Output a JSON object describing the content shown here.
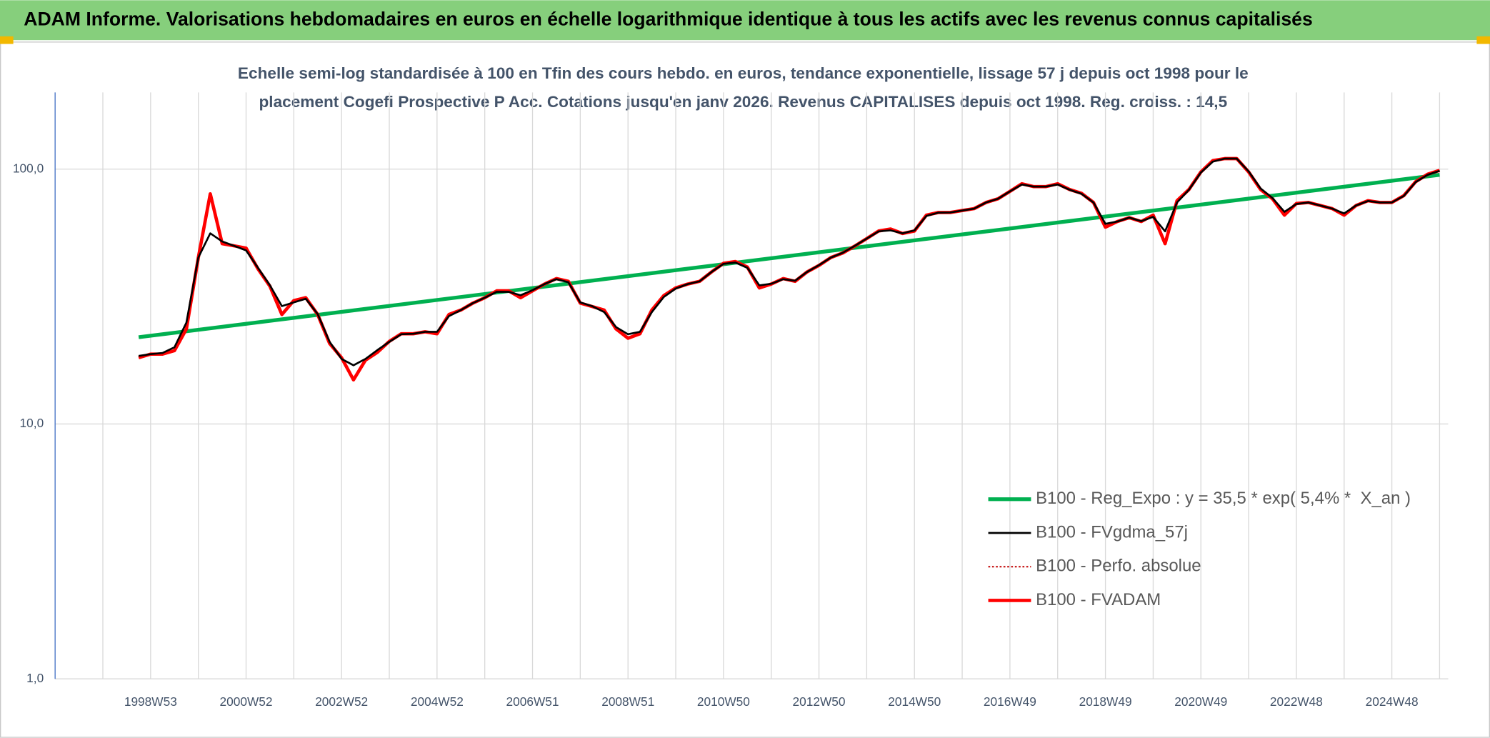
{
  "chart_data": {
    "type": "line",
    "title": "ADAM Informe. Valorisations hebdomadaires en euros en échelle logarithmique identique à tous les actifs avec les revenus connus capitalisés",
    "subtitle": [
      "Echelle semi-log standardisée à 100 en Tfin des cours hebdo. en euros, tendance exponentielle, lissage 57 j depuis oct 1998 pour le",
      "placement Cogefi Prospective P Acc. Cotations jusqu'en janv 2026. Revenus CAPITALISES depuis oct 1998. Reg. croiss. : 14,5"
    ],
    "log_scale": true,
    "grid": true,
    "legend": "lower right",
    "xlim": [
      1997,
      2026.18
    ],
    "ylim": [
      1,
      200
    ],
    "yticks": [
      {
        "value": 1,
        "label": "1,0"
      },
      {
        "value": 10,
        "label": "10,0"
      },
      {
        "value": 100,
        "label": "100,0"
      }
    ],
    "xticks": [
      {
        "value": 1998,
        "label": null
      },
      {
        "value": 1999,
        "label": "1998W53"
      },
      {
        "value": 2000,
        "label": null
      },
      {
        "value": 2001,
        "label": "2000W52"
      },
      {
        "value": 2002,
        "label": null
      },
      {
        "value": 2003,
        "label": "2002W52"
      },
      {
        "value": 2004,
        "label": null
      },
      {
        "value": 2005,
        "label": "2004W52"
      },
      {
        "value": 2006,
        "label": null
      },
      {
        "value": 2007,
        "label": "2006W51"
      },
      {
        "value": 2008,
        "label": null
      },
      {
        "value": 2009,
        "label": "2008W51"
      },
      {
        "value": 2010,
        "label": null
      },
      {
        "value": 2011,
        "label": "2010W50"
      },
      {
        "value": 2012,
        "label": null
      },
      {
        "value": 2013,
        "label": "2012W50"
      },
      {
        "value": 2014,
        "label": null
      },
      {
        "value": 2015,
        "label": "2014W50"
      },
      {
        "value": 2016,
        "label": null
      },
      {
        "value": 2017,
        "label": "2016W49"
      },
      {
        "value": 2018,
        "label": null
      },
      {
        "value": 2019,
        "label": "2018W49"
      },
      {
        "value": 2020,
        "label": null
      },
      {
        "value": 2021,
        "label": "2020W49"
      },
      {
        "value": 2022,
        "label": null
      },
      {
        "value": 2023,
        "label": "2022W48"
      },
      {
        "value": 2024,
        "label": null
      },
      {
        "value": 2025,
        "label": "2024W48"
      },
      {
        "value": 2026,
        "label": null
      }
    ],
    "x": [
      1998.75,
      1999,
      1999.25,
      1999.5,
      1999.75,
      2000,
      2000.25,
      2000.5,
      2000.75,
      2001,
      2001.25,
      2001.5,
      2001.75,
      2002,
      2002.25,
      2002.5,
      2002.75,
      2003,
      2003.25,
      2003.5,
      2003.75,
      2004,
      2004.25,
      2004.5,
      2004.75,
      2005,
      2005.25,
      2005.5,
      2005.75,
      2006,
      2006.25,
      2006.5,
      2006.75,
      2007,
      2007.25,
      2007.5,
      2007.75,
      2008,
      2008.25,
      2008.5,
      2008.75,
      2009,
      2009.25,
      2009.5,
      2009.75,
      2010,
      2010.25,
      2010.5,
      2010.75,
      2011,
      2011.25,
      2011.5,
      2011.75,
      2012,
      2012.25,
      2012.5,
      2012.75,
      2013,
      2013.25,
      2013.5,
      2013.75,
      2014,
      2014.25,
      2014.5,
      2014.75,
      2015,
      2015.25,
      2015.5,
      2015.75,
      2016,
      2016.25,
      2016.5,
      2016.75,
      2017,
      2017.25,
      2017.5,
      2017.75,
      2018,
      2018.25,
      2018.5,
      2018.75,
      2019,
      2019.25,
      2019.5,
      2019.75,
      2020,
      2020.25,
      2020.5,
      2020.75,
      2021,
      2021.25,
      2021.5,
      2021.75,
      2022,
      2022.25,
      2022.5,
      2022.75,
      2023,
      2023.25,
      2023.5,
      2023.75,
      2024,
      2024.25,
      2024.5,
      2024.75,
      2025,
      2025.25,
      2025.5,
      2025.75,
      2026
    ],
    "series": [
      {
        "name": "B100 - Reg_Expo : y = 35,5 * exp( 5,4% *  X_an )",
        "color": "#00b050",
        "x": [
          1998.75,
          2026
        ],
        "values": [
          21.9,
          95
        ]
      },
      {
        "name": "B100 - FVgdma_57j",
        "color": "#000000",
        "values": [
          18.5,
          18.8,
          19,
          20,
          25,
          45,
          56,
          52,
          50,
          48,
          41,
          35,
          29,
          30,
          31,
          27,
          21,
          18,
          17,
          18,
          19.5,
          21,
          22.5,
          22.6,
          23,
          23,
          26.5,
          28,
          29.8,
          31.3,
          33,
          33,
          32,
          33.5,
          35.4,
          37,
          36,
          30,
          29,
          27.5,
          24,
          22.5,
          23,
          27.5,
          31.5,
          34,
          35.4,
          36.3,
          39.5,
          42.5,
          43,
          41,
          35,
          35.5,
          37,
          36.5,
          39.5,
          42,
          45,
          47,
          50,
          53.4,
          57,
          57.5,
          56,
          57.5,
          65.5,
          67.5,
          67.6,
          68.8,
          70,
          74,
          76.5,
          81.8,
          87,
          85.4,
          85.4,
          87,
          83,
          80,
          74,
          61,
          62.3,
          64.5,
          62.5,
          65,
          57,
          74,
          83,
          97,
          107,
          110,
          110,
          98,
          84,
          77,
          68,
          73,
          74,
          72,
          70,
          67,
          72,
          75,
          74,
          74,
          78.5,
          89,
          95,
          98.5
        ]
      },
      {
        "name": "B100 - Perfo. absolue",
        "color": "#c00000",
        "dash": "dotted",
        "values": [
          18.2,
          18.8,
          18.8,
          19.4,
          23.6,
          45,
          80,
          51,
          50,
          49,
          40.6,
          34.7,
          26.9,
          30.5,
          31.3,
          26.9,
          20.7,
          18.2,
          14.9,
          17.8,
          19.1,
          21.1,
          22.6,
          22.6,
          23,
          22.6,
          26.9,
          28,
          29.8,
          31.3,
          33.3,
          33.3,
          31.3,
          33.3,
          35.4,
          37.2,
          36.3,
          29.8,
          28.9,
          28,
          23.6,
          21.7,
          22.6,
          28,
          31.9,
          34.2,
          35.4,
          36.3,
          39.5,
          42.7,
          43.4,
          41.3,
          34.2,
          35.4,
          37.2,
          36.3,
          39.5,
          41.9,
          45,
          46.9,
          49.9,
          53.4,
          57.2,
          58.2,
          55.9,
          57.2,
          66,
          67.6,
          67.6,
          68.8,
          70,
          74,
          76.5,
          81.8,
          87.6,
          85.4,
          85.4,
          87.6,
          83.2,
          80.4,
          74,
          59.2,
          62.3,
          64.5,
          62.3,
          66,
          51,
          75.2,
          83.2,
          97.5,
          108,
          110,
          110,
          97.5,
          83.2,
          76.5,
          66,
          73.3,
          74,
          72,
          70,
          66,
          72,
          75.2,
          74,
          74,
          78.7,
          89.3,
          95.5,
          98.9
        ]
      },
      {
        "name": "B100 - FVADAM",
        "color": "#ff0000",
        "values": [
          18.2,
          18.8,
          18.8,
          19.4,
          23.6,
          45,
          80,
          51,
          50,
          49,
          40.6,
          34.7,
          26.9,
          30.5,
          31.3,
          26.9,
          20.7,
          18.2,
          14.9,
          17.8,
          19.1,
          21.1,
          22.6,
          22.6,
          23,
          22.6,
          26.9,
          28,
          29.8,
          31.3,
          33.3,
          33.3,
          31.3,
          33.3,
          35.4,
          37.2,
          36.3,
          29.8,
          28.9,
          28,
          23.6,
          21.7,
          22.6,
          28,
          31.9,
          34.2,
          35.4,
          36.3,
          39.5,
          42.7,
          43.4,
          41.3,
          34.2,
          35.4,
          37.2,
          36.3,
          39.5,
          41.9,
          45,
          46.9,
          49.9,
          53.4,
          57.2,
          58.2,
          55.9,
          57.2,
          66,
          67.6,
          67.6,
          68.8,
          70,
          74,
          76.5,
          81.8,
          87.6,
          85.4,
          85.4,
          87.6,
          83.2,
          80.4,
          74,
          59.2,
          62.3,
          64.5,
          62.3,
          66,
          51,
          75.2,
          83.2,
          97.5,
          108,
          110,
          110,
          97.5,
          83.2,
          76.5,
          66,
          73.3,
          74,
          72,
          70,
          66,
          72,
          75.2,
          74,
          74,
          78.7,
          89.3,
          95.5,
          98.9
        ]
      }
    ]
  }
}
